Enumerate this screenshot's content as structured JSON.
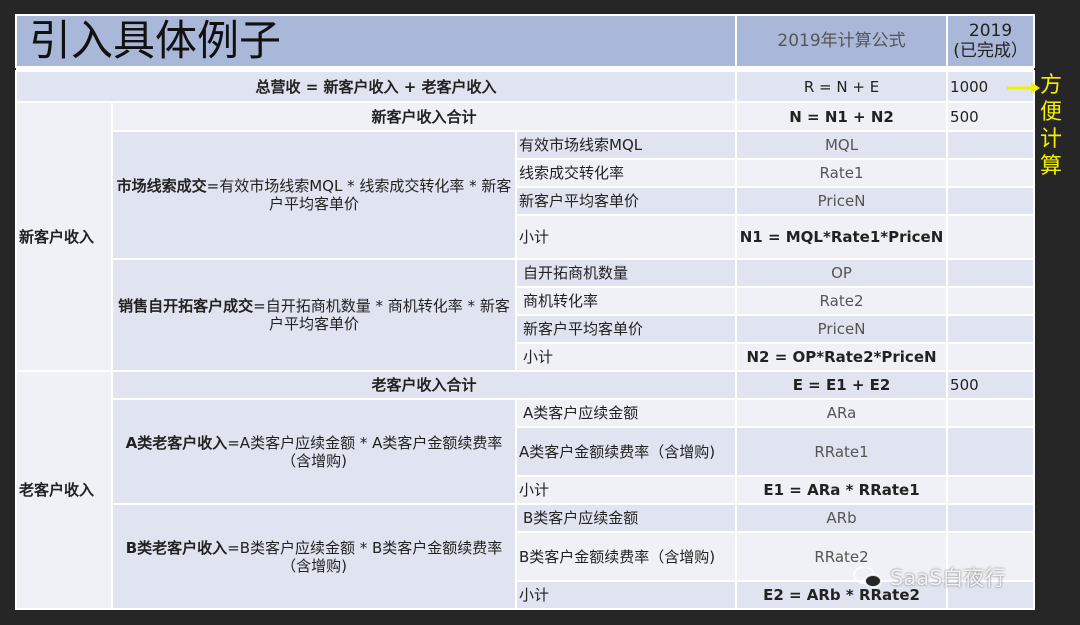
{
  "title": "引入具体例子",
  "header": {
    "formula_col": "2019年计算公式",
    "year": "2019",
    "year_status": "(已完成）"
  },
  "total": {
    "label": "总营收 = 新客户收入 + 老客户收入",
    "formula": "R = N + E",
    "value": "1000"
  },
  "note": "方便计算",
  "new_customer": {
    "label": "新客户收入",
    "total": {
      "label": "新客户收入合计",
      "formula": "N = N1 + N2",
      "value": "500"
    },
    "market": {
      "bold": "市场线索成交",
      "rest": "=有效市场线索MQL * 线索成交转化率 * 新客户平均客单价",
      "items": [
        {
          "label": "有效市场线索MQL",
          "formula": "MQL"
        },
        {
          "label": "线索成交转化率",
          "formula": "Rate1"
        },
        {
          "label": "新客户平均客单价",
          "formula": "PriceN"
        }
      ],
      "subtotal": {
        "label": "小计",
        "formula": "N1 = MQL*Rate1*PriceN"
      }
    },
    "sales": {
      "bold": "销售自开拓客户成交",
      "rest": "=自开拓商机数量 * 商机转化率 * 新客户平均客单价",
      "items": [
        {
          "label": "自开拓商机数量",
          "formula": "OP"
        },
        {
          "label": "商机转化率",
          "formula": "Rate2"
        },
        {
          "label": "新客户平均客单价",
          "formula": "PriceN"
        }
      ],
      "subtotal": {
        "label": "小计",
        "formula": "N2 = OP*Rate2*PriceN"
      }
    }
  },
  "old_customer": {
    "label": "老客户收入",
    "total": {
      "label": "老客户收入合计",
      "formula": "E = E1 + E2",
      "value": "500"
    },
    "a": {
      "bold": "A类老客户收入",
      "rest": "=A类客户应续金额 * A类客户金额续费率（含增购)",
      "items": [
        {
          "label": "A类客户应续金额",
          "formula": "ARa"
        },
        {
          "label": "A类客户金额续费率（含增购)",
          "formula": "RRate1"
        }
      ],
      "subtotal": {
        "label": "小计",
        "formula": "E1 = ARa * RRate1"
      }
    },
    "b": {
      "bold": "B类老客户收入",
      "rest": "=B类客户应续金额 * B类客户金额续费率（含增购)",
      "items": [
        {
          "label": "B类客户应续金额",
          "formula": "ARb"
        },
        {
          "label": "B类客户金额续费率（含增购)",
          "formula": "RRate2"
        }
      ],
      "subtotal": {
        "label": "小计",
        "formula": "E2 = ARb * RRate2"
      }
    }
  },
  "watermark": "SaaS白夜行",
  "colors": {
    "header": "#a9b8d9",
    "row_dark": "#dfe4f0",
    "row_light": "#eff1f7",
    "note": "#f0f000"
  }
}
